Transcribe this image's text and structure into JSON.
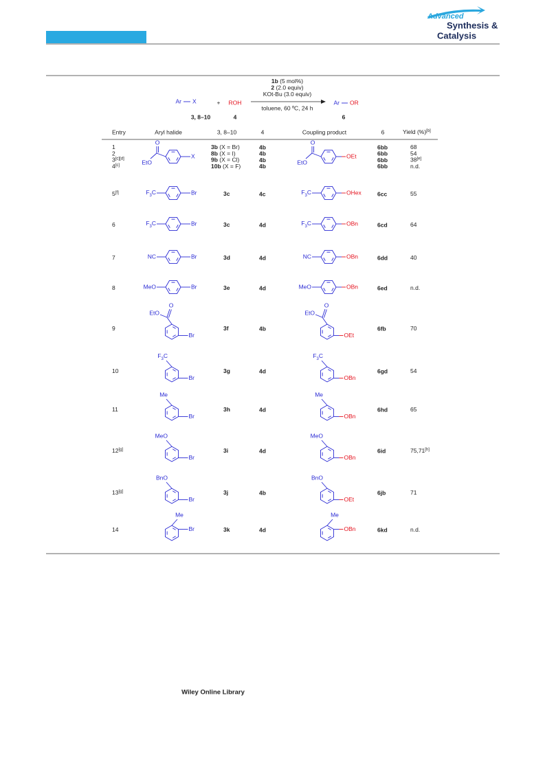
{
  "header": {
    "logo": [
      "Advanced",
      "Synthesis &",
      "Catalysis"
    ]
  },
  "scheme": {
    "reactant1": {
      "ar": "Ar",
      "x": "X"
    },
    "plus": "+",
    "reactant2": "ROH",
    "conditions_above": [
      {
        "bold": "1b",
        "text": " (5 mol%)"
      },
      {
        "bold": "2",
        "text": " (2.0 equiv)"
      },
      {
        "text": "KOt-Bu (3.0 equiv)"
      }
    ],
    "conditions_below": "toluene, 60 ºC, 24 h",
    "product": {
      "ar": "Ar",
      "r": "OR"
    },
    "labels": [
      "3, 8–10",
      "4",
      "6"
    ]
  },
  "table": {
    "headers": [
      "Entry",
      "Aryl halide",
      "3, 8–10",
      "4",
      "Coupling product",
      "6",
      "Yield (%)"
    ],
    "yield_note": "[b]",
    "rows": [
      {
        "entries": [
          {
            "n": "1"
          },
          {
            "n": "2"
          },
          {
            "n": "3",
            "note": "[c][d]"
          },
          {
            "n": "4",
            "note": "[c]"
          }
        ],
        "halide": {
          "pattern": "ester-para",
          "groups": [
            "O",
            "EtO",
            "X"
          ]
        },
        "compounds": [
          {
            "code": "3b",
            "note": " (X = Br)"
          },
          {
            "code": "8b",
            "note": " (X = I)"
          },
          {
            "code": "9b",
            "note": " (X = Cl)"
          },
          {
            "code": "10b",
            "note": " (X = F)"
          }
        ],
        "alcohols": [
          "4b",
          "4b",
          "4b",
          "4b"
        ],
        "product": {
          "pattern": "ester-para",
          "groups": [
            "O",
            "EtO"
          ],
          "or": "OEt"
        },
        "product_ids": [
          "6bb",
          "6bb",
          "6bb",
          "6bb"
        ],
        "yields": [
          {
            "text": "68"
          },
          {
            "text": "54"
          },
          {
            "text": "38",
            "note": "[e]"
          },
          {
            "text": "n.d."
          }
        ]
      },
      {
        "entries": [
          {
            "n": "5",
            "note": "[f]"
          }
        ],
        "halide": {
          "pattern": "para",
          "groups": [
            "F3C",
            "Br"
          ]
        },
        "compounds": [
          {
            "code": "3c"
          }
        ],
        "alcohols": [
          "4c"
        ],
        "product": {
          "pattern": "para",
          "groups": [
            "F3C"
          ],
          "or": "OHex"
        },
        "product_ids": [
          "6cc"
        ],
        "yields": [
          {
            "text": "55"
          }
        ]
      },
      {
        "entries": [
          {
            "n": "6"
          }
        ],
        "halide": {
          "pattern": "para",
          "groups": [
            "F3C",
            "Br"
          ]
        },
        "compounds": [
          {
            "code": "3c"
          }
        ],
        "alcohols": [
          "4d"
        ],
        "product": {
          "pattern": "para",
          "groups": [
            "F3C"
          ],
          "or": "OBn"
        },
        "product_ids": [
          "6cd"
        ],
        "yields": [
          {
            "text": "64"
          }
        ]
      },
      {
        "entries": [
          {
            "n": "7"
          }
        ],
        "halide": {
          "pattern": "para",
          "groups": [
            "NC",
            "Br"
          ]
        },
        "compounds": [
          {
            "code": "3d"
          }
        ],
        "alcohols": [
          "4d"
        ],
        "product": {
          "pattern": "para",
          "groups": [
            "NC"
          ],
          "or": "OBn"
        },
        "product_ids": [
          "6dd"
        ],
        "yields": [
          {
            "text": "40"
          }
        ]
      },
      {
        "entries": [
          {
            "n": "8"
          }
        ],
        "halide": {
          "pattern": "para",
          "groups": [
            "MeO",
            "Br"
          ]
        },
        "compounds": [
          {
            "code": "3e"
          }
        ],
        "alcohols": [
          "4d"
        ],
        "product": {
          "pattern": "para",
          "groups": [
            "MeO"
          ],
          "or": "OBn"
        },
        "product_ids": [
          "6ed"
        ],
        "yields": [
          {
            "text": "n.d."
          }
        ]
      },
      {
        "entries": [
          {
            "n": "9"
          }
        ],
        "halide": {
          "pattern": "ester-meta",
          "groups": [
            "O",
            "EtO",
            "Br"
          ]
        },
        "compounds": [
          {
            "code": "3f"
          }
        ],
        "alcohols": [
          "4b"
        ],
        "product": {
          "pattern": "ester-meta",
          "groups": [
            "O",
            "EtO"
          ],
          "or": "OEt"
        },
        "product_ids": [
          "6fb"
        ],
        "yields": [
          {
            "text": "70"
          }
        ]
      },
      {
        "entries": [
          {
            "n": "10"
          }
        ],
        "halide": {
          "pattern": "meta",
          "groups": [
            "F3C",
            "Br"
          ]
        },
        "compounds": [
          {
            "code": "3g"
          }
        ],
        "alcohols": [
          "4d"
        ],
        "product": {
          "pattern": "meta",
          "groups": [
            "F3C"
          ],
          "or": "OBn"
        },
        "product_ids": [
          "6gd"
        ],
        "yields": [
          {
            "text": "54"
          }
        ]
      },
      {
        "entries": [
          {
            "n": "11"
          }
        ],
        "halide": {
          "pattern": "meta",
          "groups": [
            "Me",
            "Br"
          ]
        },
        "compounds": [
          {
            "code": "3h"
          }
        ],
        "alcohols": [
          "4d"
        ],
        "product": {
          "pattern": "meta",
          "groups": [
            "Me"
          ],
          "or": "OBn"
        },
        "product_ids": [
          "6hd"
        ],
        "yields": [
          {
            "text": "65"
          }
        ]
      },
      {
        "entries": [
          {
            "n": "12",
            "note": "[g]"
          }
        ],
        "halide": {
          "pattern": "meta",
          "groups": [
            "MeO",
            "Br"
          ]
        },
        "compounds": [
          {
            "code": "3i"
          }
        ],
        "alcohols": [
          "4d"
        ],
        "product": {
          "pattern": "meta",
          "groups": [
            "MeO"
          ],
          "or": "OBn"
        },
        "product_ids": [
          "6id"
        ],
        "yields": [
          {
            "text": "75,71",
            "note": "[h]"
          }
        ]
      },
      {
        "entries": [
          {
            "n": "13",
            "note": "[g]"
          }
        ],
        "halide": {
          "pattern": "meta",
          "groups": [
            "BnO",
            "Br"
          ]
        },
        "compounds": [
          {
            "code": "3j"
          }
        ],
        "alcohols": [
          "4b"
        ],
        "product": {
          "pattern": "meta",
          "groups": [
            "BnO"
          ],
          "or": "OEt"
        },
        "product_ids": [
          "6jb"
        ],
        "yields": [
          {
            "text": "71"
          }
        ]
      },
      {
        "entries": [
          {
            "n": "14"
          }
        ],
        "halide": {
          "pattern": "ortho",
          "groups": [
            "Me",
            "Br"
          ]
        },
        "compounds": [
          {
            "code": "3k"
          }
        ],
        "alcohols": [
          "4d"
        ],
        "product": {
          "pattern": "ortho",
          "groups": [
            "Me"
          ],
          "or": "OBn"
        },
        "product_ids": [
          "6kd"
        ],
        "yields": [
          {
            "text": "n.d."
          }
        ]
      }
    ]
  },
  "footer": {
    "text": "Wiley Online Library"
  }
}
